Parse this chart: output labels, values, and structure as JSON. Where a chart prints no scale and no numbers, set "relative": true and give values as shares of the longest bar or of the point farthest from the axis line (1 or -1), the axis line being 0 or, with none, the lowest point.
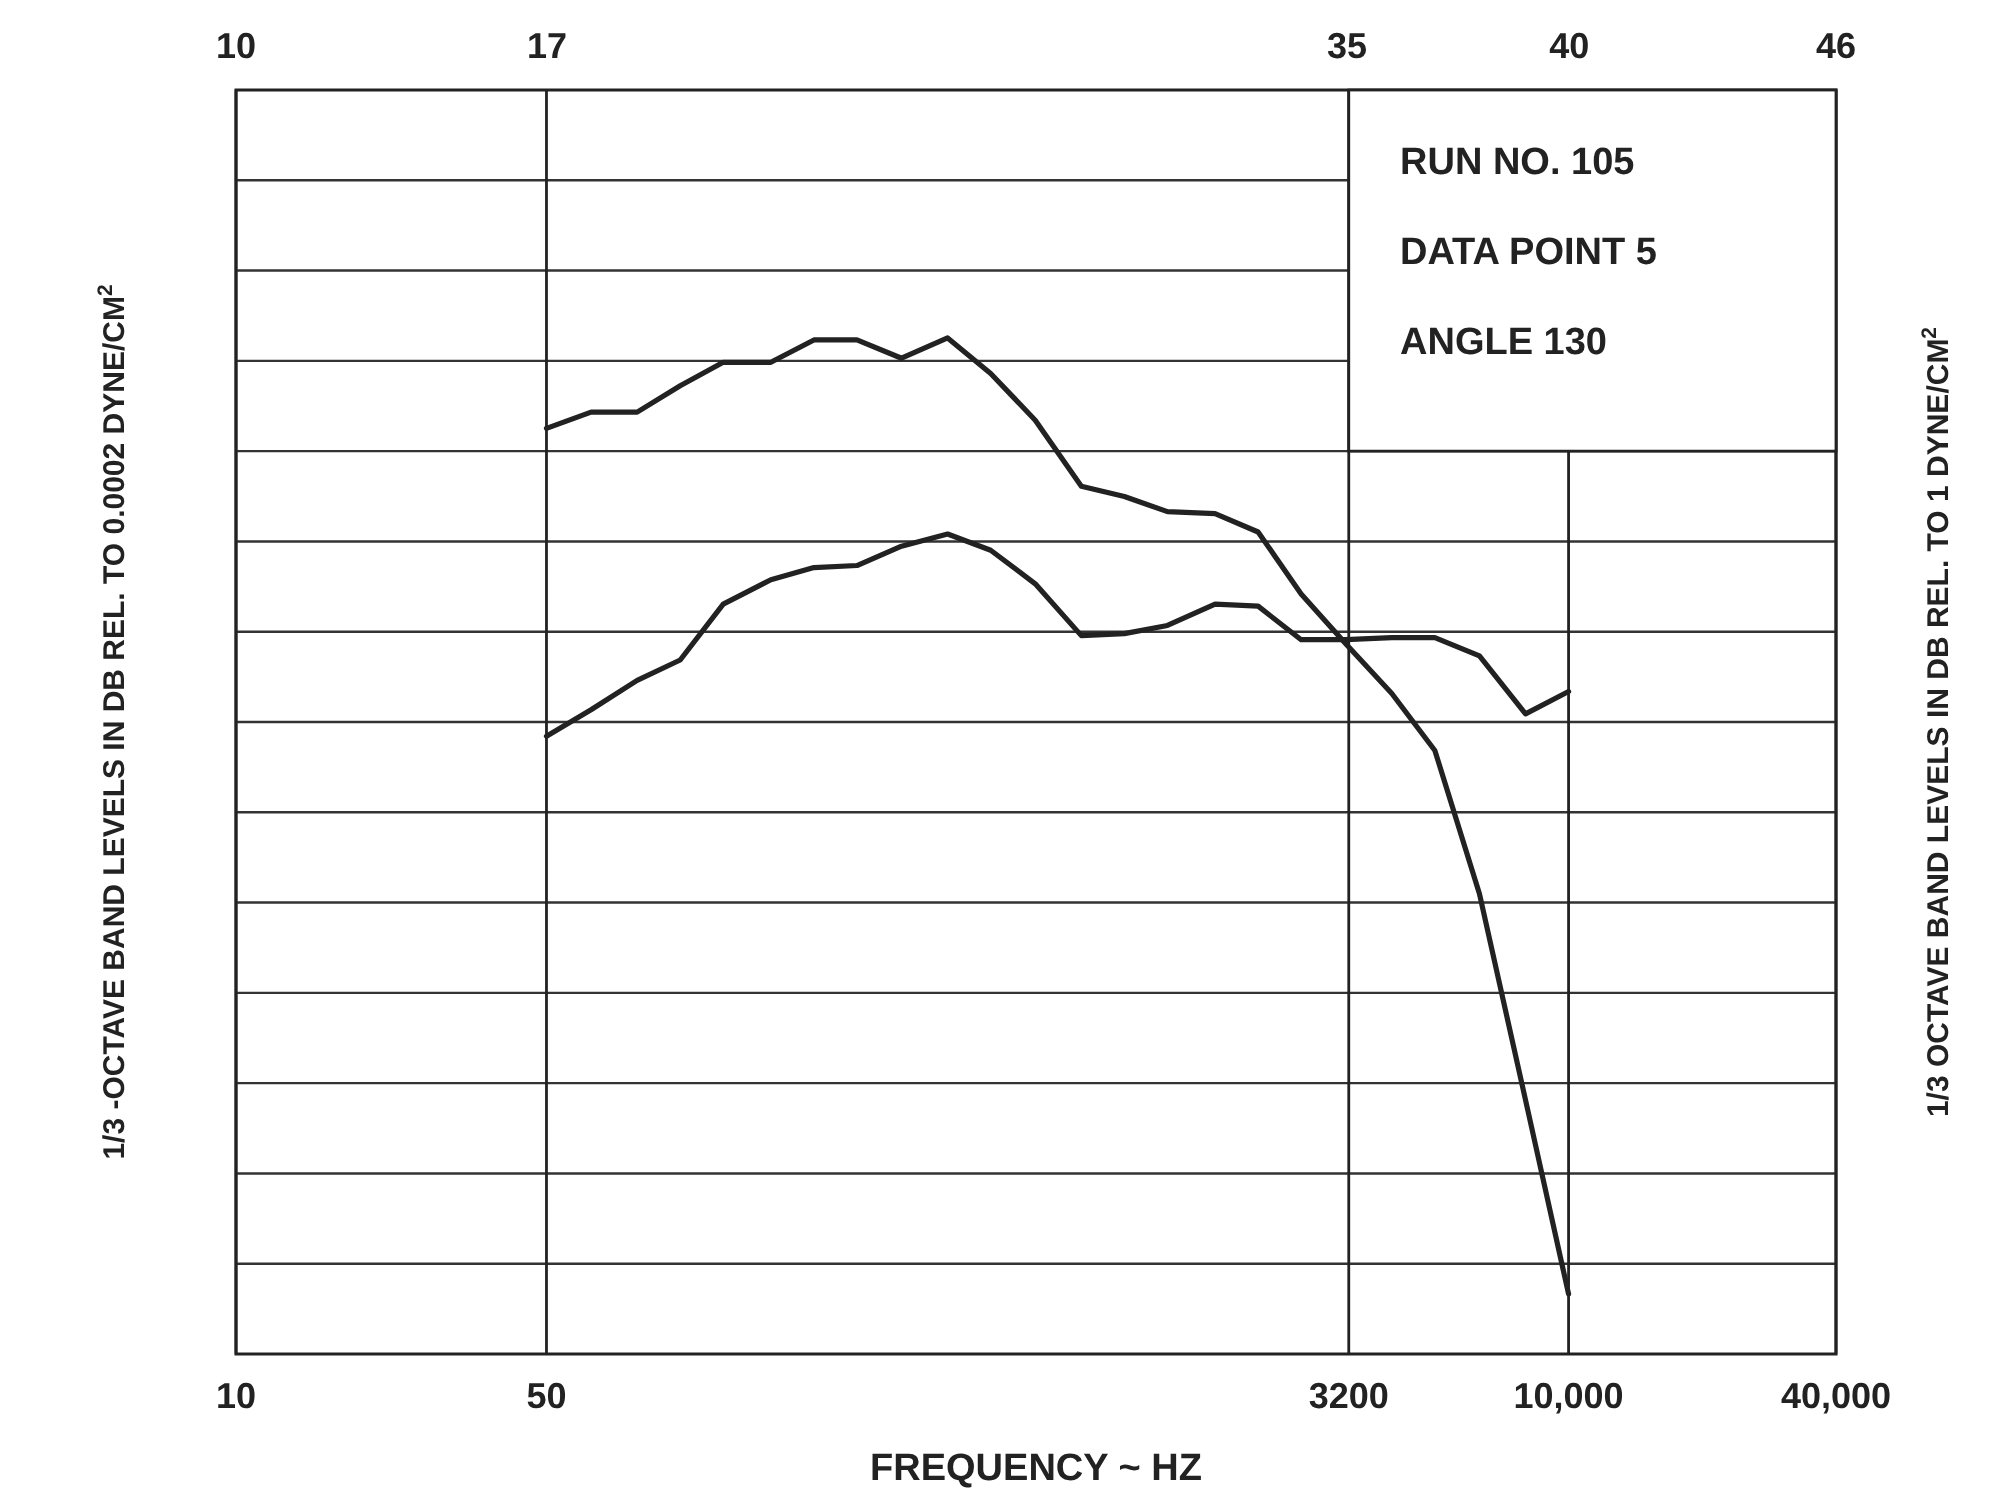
{
  "chart_data": {
    "type": "line",
    "relative": true,
    "log": "x",
    "xlabel": "FREQUENCY ~ HZ",
    "ylabel": "1/3 -OCTAVE BAND LEVELS IN DB REL. TO 0.0002 DYNE/CM$^{2}$",
    "y2label": "1/3  OCTAVE BAND LEVELS IN DB REL. TO 1 DYNE/CM$^{2}$",
    "annotations": [
      "RUN NO. 105",
      "DATA POINT 5",
      "ANGLE 130"
    ],
    "xlim": [
      10,
      40000
    ],
    "xticks": [
      10,
      50,
      3200,
      {
        "value": 10000,
        "label": "10,000"
      },
      {
        "value": 40000,
        "label": "40,000"
      }
    ],
    "x2lim": [
      10,
      46
    ],
    "x2ticks": [
      10,
      17,
      35,
      40,
      46
    ],
    "grid": true,
    "marker": "none",
    "line_style": "solid",
    "x": [
      50,
      63,
      80,
      100,
      125,
      160,
      200,
      250,
      315,
      400,
      500,
      630,
      800,
      1000,
      1250,
      1600,
      2000,
      2500,
      3150,
      4000,
      5000,
      6300,
      8000,
      10000
    ],
    "series": [
      {
        "color": "#222222",
        "values": [
          0.911,
          0.927,
          0.927,
          0.953,
          0.976,
          0.976,
          0.998,
          0.998,
          0.98,
          1,
          0.965,
          0.919,
          0.854,
          0.844,
          0.829,
          0.827,
          0.809,
          0.748,
          0.699,
          0.65,
          0.594,
          0.453,
          0.25,
          0.059
        ]
      },
      {
        "color": "#222222",
        "values": [
          0.608,
          0.634,
          0.663,
          0.683,
          0.738,
          0.762,
          0.774,
          0.776,
          0.795,
          0.807,
          0.791,
          0.758,
          0.707,
          0.709,
          0.717,
          0.738,
          0.736,
          0.703,
          0.703,
          0.705,
          0.705,
          0.687,
          0.63,
          0.652
        ]
      }
    ]
  }
}
